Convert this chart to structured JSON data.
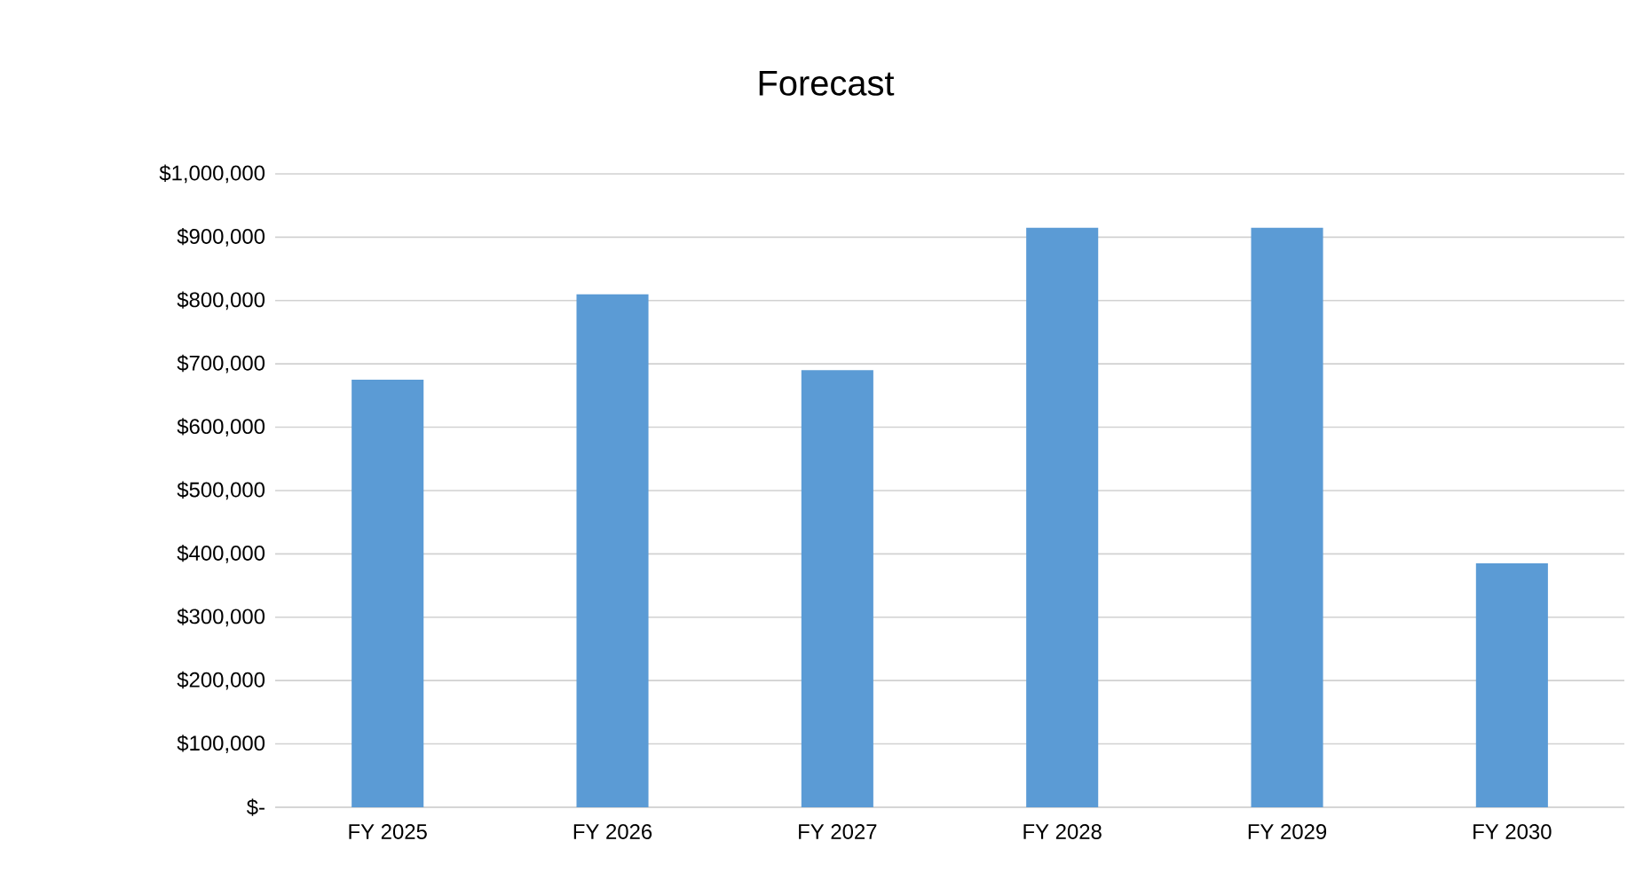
{
  "chart_data": {
    "type": "bar",
    "title": "Forecast",
    "categories": [
      "FY 2025",
      "FY 2026",
      "FY 2027",
      "FY 2028",
      "FY 2029",
      "FY 2030"
    ],
    "values": [
      675000,
      810000,
      690000,
      915000,
      915000,
      385000
    ],
    "color": "#5b9bd5",
    "ylim": [
      0,
      1000000
    ],
    "yticks": [
      {
        "value": 0,
        "label": "$-"
      },
      {
        "value": 100000,
        "label": "$100,000"
      },
      {
        "value": 200000,
        "label": "$200,000"
      },
      {
        "value": 300000,
        "label": "$300,000"
      },
      {
        "value": 400000,
        "label": "$400,000"
      },
      {
        "value": 500000,
        "label": "$500,000"
      },
      {
        "value": 600000,
        "label": "$600,000"
      },
      {
        "value": 700000,
        "label": "$700,000"
      },
      {
        "value": 800000,
        "label": "$800,000"
      },
      {
        "value": 900000,
        "label": "$900,000"
      },
      {
        "value": 1000000,
        "label": "$1,000,000"
      }
    ],
    "grid": "y"
  }
}
